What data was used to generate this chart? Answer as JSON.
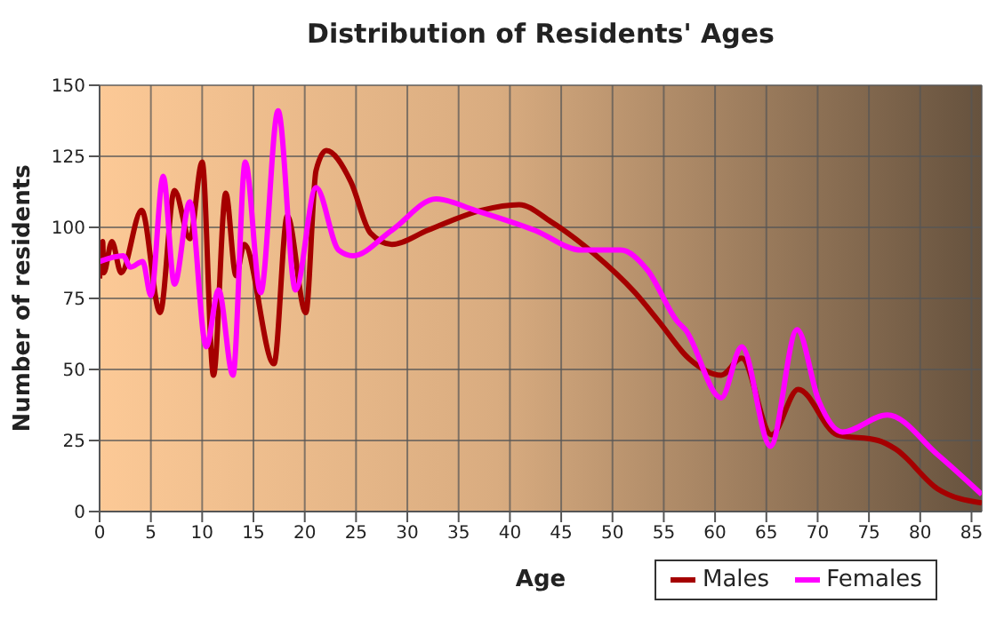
{
  "chart_data": {
    "type": "line",
    "title": "Distribution of Residents' Ages",
    "xlabel": "Age",
    "ylabel": "Number of residents",
    "xlim": [
      0,
      86
    ],
    "xticks": [
      0,
      5,
      10,
      15,
      20,
      25,
      30,
      35,
      40,
      45,
      50,
      55,
      60,
      65,
      70,
      75,
      80,
      85
    ],
    "ylim": [
      0,
      150
    ],
    "yticks": [
      0,
      25,
      50,
      75,
      100,
      125,
      150
    ],
    "grid": true,
    "legend": "bottom",
    "marker": "none",
    "line_style": "solid",
    "series": [
      {
        "name": "Males",
        "color": "#a50000",
        "x": [
          0,
          0.3,
          0.4,
          1.2,
          2.1,
          4.1,
          5.9,
          7.3,
          8.8,
          10,
          11.1,
          12.3,
          13.3,
          14.1,
          17,
          18.3,
          20.1,
          21.1,
          22.1,
          24.5,
          26.4,
          28.5,
          32,
          37.2,
          40.9,
          44,
          48.1,
          52.2,
          54.5,
          57.4,
          60.6,
          62.6,
          65.5,
          68.1,
          71.9,
          75.9,
          77.6,
          81.7,
          86
        ],
        "values": [
          82,
          95,
          84,
          95,
          84,
          106,
          70,
          113,
          96,
          123,
          48,
          112,
          83,
          94,
          52,
          104,
          70,
          120,
          127,
          116,
          98,
          94,
          99,
          106,
          108,
          102,
          91,
          77,
          67,
          54,
          48,
          54,
          27,
          43,
          27,
          25,
          22,
          8,
          3
        ]
      },
      {
        "name": "Females",
        "color": "#ff00ff",
        "x": [
          0,
          2.3,
          3,
          4.2,
          5,
          6.2,
          7.3,
          8.8,
          10.4,
          11.6,
          13,
          14.2,
          15.7,
          17.4,
          19.1,
          21.1,
          23.3,
          24.7,
          28.5,
          32.8,
          36.6,
          42.4,
          47,
          50.8,
          53.4,
          56.3,
          57.1,
          60.6,
          62.6,
          65.4,
          68,
          70.1,
          72.4,
          76.8,
          81.7,
          86
        ],
        "values": [
          88,
          90,
          86,
          88,
          76,
          118,
          80,
          109,
          58,
          78,
          48,
          123,
          77,
          141,
          78,
          114,
          92,
          90,
          99,
          110,
          106,
          99,
          92,
          92,
          85,
          67,
          64,
          40,
          58,
          23,
          64,
          39,
          28,
          34,
          20,
          6
        ]
      }
    ]
  }
}
